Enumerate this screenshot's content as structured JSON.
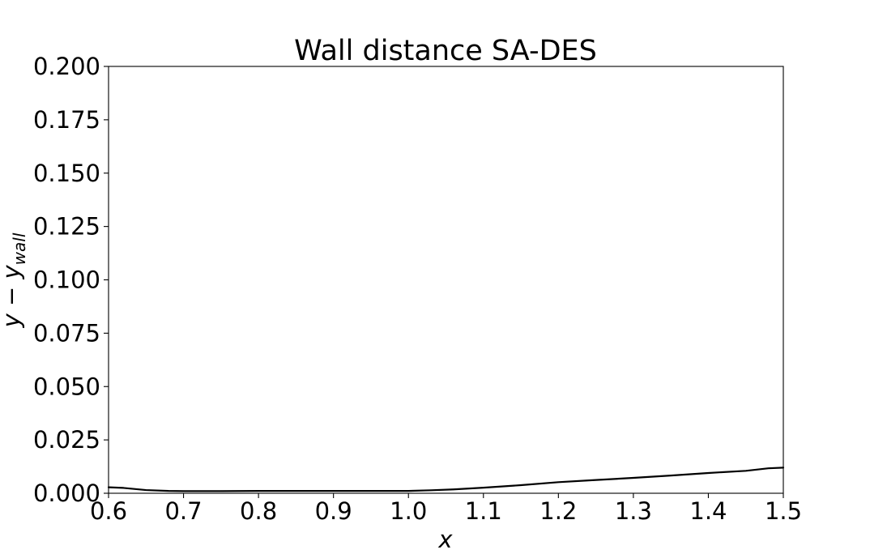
{
  "chart_data": {
    "type": "line",
    "title": "Wall distance SA-DES",
    "xlabel": "x",
    "ylabel": {
      "base": "y − y",
      "sub": "wall"
    },
    "xlim": [
      0.6,
      1.5
    ],
    "ylim": [
      0.0,
      0.2
    ],
    "xticks": [
      "0.6",
      "0.7",
      "0.8",
      "0.9",
      "1.0",
      "1.1",
      "1.2",
      "1.3",
      "1.4",
      "1.5"
    ],
    "yticks": [
      "0.000",
      "0.025",
      "0.050",
      "0.075",
      "0.100",
      "0.125",
      "0.150",
      "0.175",
      "0.200"
    ],
    "grid": false,
    "series": [
      {
        "color": "#000000",
        "x": [
          0.6,
          0.62,
          0.65,
          0.68,
          0.7,
          0.75,
          0.8,
          0.85,
          0.9,
          0.95,
          1.0,
          1.03,
          1.06,
          1.1,
          1.15,
          1.2,
          1.25,
          1.3,
          1.35,
          1.4,
          1.45,
          1.48,
          1.5
        ],
        "y": [
          0.0028,
          0.0025,
          0.0015,
          0.0011,
          0.001,
          0.001,
          0.0011,
          0.0011,
          0.0011,
          0.0011,
          0.0011,
          0.0014,
          0.0018,
          0.0026,
          0.0038,
          0.0052,
          0.0062,
          0.0072,
          0.0083,
          0.0095,
          0.0105,
          0.0117,
          0.012
        ]
      }
    ]
  }
}
